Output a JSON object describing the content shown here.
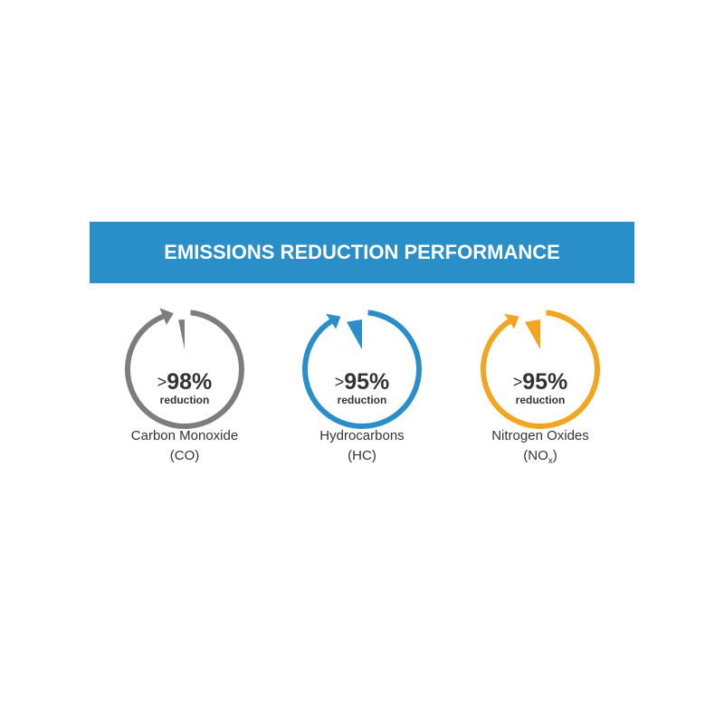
{
  "header": {
    "title": "EMISSIONS REDUCTION PERFORMANCE",
    "color": "#2a8fc8"
  },
  "items": [
    {
      "value": 98,
      "prefix": ">",
      "label": "98%",
      "unit_text": "reduction",
      "name": "Carbon Monoxide",
      "abbr": "(CO)",
      "color": "#7d7d80"
    },
    {
      "value": 95,
      "prefix": ">",
      "label": "95%",
      "unit_text": "reduction",
      "name": "Hydrocarbons",
      "abbr": "(HC)",
      "color": "#2a8fc8"
    },
    {
      "value": 95,
      "prefix": ">",
      "label": "95%",
      "unit_text": "reduction",
      "name": "Nitrogen Oxides",
      "abbr": "(NO",
      "abbr_sub": "x",
      "abbr_end": ")",
      "color": "#f2a51f"
    }
  ]
}
